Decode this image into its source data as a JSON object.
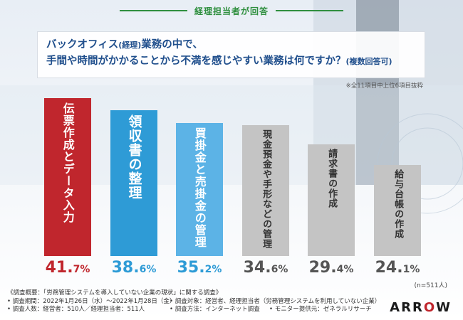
{
  "header": {
    "label": "経理担当者が回答"
  },
  "question": {
    "line1_a": "バックオフィス",
    "line1_b": "(経理)",
    "line1_c": "業務の中で、",
    "line2_a": "手間や時間がかかることから不満を感じやすい業務は何ですか？",
    "line2_b": "(複数回答可)"
  },
  "note": "※全11項目中上位6項目抜粋",
  "sample_size": "(n=511人)",
  "colors": {
    "red": "#c0262d",
    "blue": "#2e9bd6",
    "lightblue": "#5cb3e6",
    "gray": "#c4c4c4",
    "green": "#2f8f3f"
  },
  "chart_data": {
    "type": "bar",
    "categories": [
      "伝票作成とデータ入力",
      "領収書の整理",
      "買掛金と売掛金の管理",
      "現金預金や手形などの管理",
      "請求書の作成",
      "給与台帳の作成"
    ],
    "values": [
      41.7,
      38.6,
      35.2,
      34.6,
      29.4,
      24.1
    ],
    "value_labels": [
      {
        "int": "41.",
        "dec": "7%"
      },
      {
        "int": "38.",
        "dec": "6%"
      },
      {
        "int": "35.",
        "dec": "2%"
      },
      {
        "int": "34.",
        "dec": "6%"
      },
      {
        "int": "29.",
        "dec": "4%"
      },
      {
        "int": "24.",
        "dec": "1%"
      }
    ],
    "bar_colors": [
      "#c0262d",
      "#2e9bd6",
      "#5cb3e6",
      "#c4c4c4",
      "#c4c4c4",
      "#c4c4c4"
    ],
    "label_colors": [
      "#c0262d",
      "#2e9bd6",
      "#2e9bd6",
      "#555555",
      "#555555",
      "#555555"
    ],
    "ylim": [
      0,
      45
    ]
  },
  "footer": {
    "title": "《調査概要：「労務管理システムを導入していない企業の現状」に関する調査》",
    "period": "• 調査期間：2022年1月26日（水）～2022年1月28日（金）",
    "target": "• 調査対象：経営者、経理担当者（労務管理システムを利用していない企業）",
    "people": "• 調査人数：経営者：510人／経理担当者：511人",
    "method": "• 調査方法：インターネット調査",
    "monitor": "• モニター提供元：ゼネラルリサーチ"
  },
  "logo": {
    "a": "ARR",
    "o": "O",
    "w": "W"
  }
}
